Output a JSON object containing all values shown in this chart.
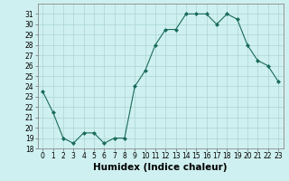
{
  "x": [
    0,
    1,
    2,
    3,
    4,
    5,
    6,
    7,
    8,
    9,
    10,
    11,
    12,
    13,
    14,
    15,
    16,
    17,
    18,
    19,
    20,
    21,
    22,
    23
  ],
  "y": [
    23.5,
    21.5,
    19.0,
    18.5,
    19.5,
    19.5,
    18.5,
    19.0,
    19.0,
    24.0,
    25.5,
    28.0,
    29.5,
    29.5,
    31.0,
    31.0,
    31.0,
    30.0,
    31.0,
    30.5,
    28.0,
    26.5,
    26.0,
    24.5
  ],
  "line_color": "#1a6b5a",
  "marker": "D",
  "marker_size": 2.0,
  "bg_color": "#cff0f0",
  "grid_color": "#aad4d4",
  "xlabel": "Humidex (Indice chaleur)",
  "ylim": [
    18,
    32
  ],
  "xlim": [
    -0.5,
    23.5
  ],
  "yticks": [
    18,
    19,
    20,
    21,
    22,
    23,
    24,
    25,
    26,
    27,
    28,
    29,
    30,
    31
  ],
  "xticks": [
    0,
    1,
    2,
    3,
    4,
    5,
    6,
    7,
    8,
    9,
    10,
    11,
    12,
    13,
    14,
    15,
    16,
    17,
    18,
    19,
    20,
    21,
    22,
    23
  ],
  "tick_fontsize": 5.5,
  "xlabel_fontsize": 7.5
}
